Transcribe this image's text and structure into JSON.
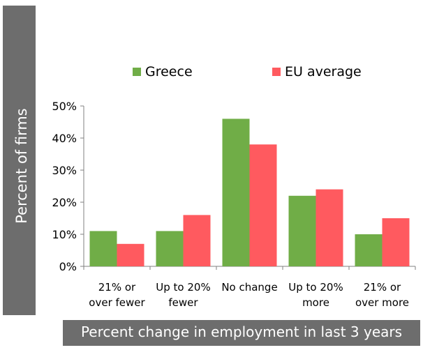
{
  "chart_data": {
    "type": "bar",
    "title": "",
    "xlabel": "Percent change in employment in last 3 years",
    "ylabel": "Percent of firms",
    "categories": [
      [
        "21% or",
        "over fewer"
      ],
      [
        "Up to 20%",
        "fewer"
      ],
      [
        "No change"
      ],
      [
        "Up to 20%",
        "more"
      ],
      [
        "21% or",
        "over more"
      ]
    ],
    "series": [
      {
        "name": "Greece",
        "color": "#70ad47",
        "values": [
          11,
          11,
          46,
          22,
          10
        ]
      },
      {
        "name": "EU average",
        "color": "#ff5a5f",
        "values": [
          7,
          16,
          38,
          24,
          15
        ]
      }
    ],
    "ylim": [
      0,
      50
    ],
    "yticks": [
      "0%",
      "10%",
      "20%",
      "30%",
      "40%",
      "50%"
    ],
    "grid": false,
    "legend_position": "top"
  }
}
